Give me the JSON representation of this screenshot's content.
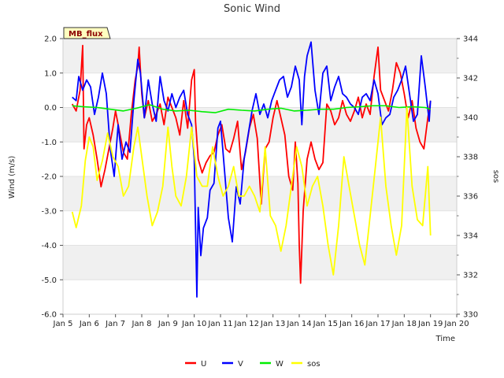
{
  "chart_data": {
    "type": "line",
    "title": "Sonic Wind",
    "badge": "MB_flux",
    "xlabel": "Time",
    "ylabel": "Wind (m/s)",
    "y2label": "sos",
    "x_ticks": [
      "Jan 5",
      "Jan 6",
      "Jan 7",
      "Jan 8",
      "Jan 9",
      "Jan 10",
      "Jan 11",
      "Jan 12",
      "Jan 13",
      "Jan 14",
      "Jan 15",
      "Jan 16",
      "Jan 17",
      "Jan 18",
      "Jan 19",
      "Jan 20"
    ],
    "xlim": [
      5,
      20
    ],
    "ylim": [
      -6.0,
      2.0
    ],
    "y_ticks": [
      "-6.0",
      "-5.0",
      "-4.0",
      "-3.0",
      "-2.0",
      "-1.0",
      "0.0",
      "1.0",
      "2.0"
    ],
    "y2lim": [
      330,
      344
    ],
    "y2_ticks": [
      "330",
      "332",
      "334",
      "336",
      "338",
      "340",
      "342",
      "344"
    ],
    "grid": "horizontal bands",
    "legend_position": "bottom-center",
    "series": [
      {
        "name": "U",
        "color": "#ff0000",
        "axis": "left",
        "x": [
          5.35,
          5.5,
          5.65,
          5.75,
          5.8,
          5.9,
          6.0,
          6.15,
          6.3,
          6.45,
          6.6,
          6.75,
          6.9,
          7.0,
          7.15,
          7.3,
          7.45,
          7.6,
          7.75,
          7.85,
          7.9,
          8.0,
          8.1,
          8.25,
          8.4,
          8.55,
          8.7,
          8.85,
          9.0,
          9.15,
          9.3,
          9.45,
          9.6,
          9.75,
          9.9,
          10.0,
          10.05,
          10.15,
          10.3,
          10.45,
          10.6,
          10.75,
          10.9,
          11.05,
          11.2,
          11.35,
          11.5,
          11.65,
          11.8,
          11.95,
          12.1,
          12.25,
          12.4,
          12.55,
          12.7,
          12.85,
          13.0,
          13.15,
          13.3,
          13.45,
          13.6,
          13.75,
          13.85,
          13.95,
          14.0,
          14.05,
          14.15,
          14.3,
          14.45,
          14.6,
          14.75,
          14.9,
          15.05,
          15.2,
          15.35,
          15.5,
          15.65,
          15.8,
          15.95,
          16.1,
          16.25,
          16.4,
          16.55,
          16.7,
          16.85,
          17.0,
          17.1,
          17.25,
          17.4,
          17.55,
          17.7,
          17.85,
          18.0,
          18.15,
          18.3,
          18.45,
          18.6,
          18.75,
          18.9,
          19.0
        ],
        "y": [
          0.1,
          -0.1,
          0.5,
          1.8,
          -1.2,
          -0.5,
          -0.3,
          -0.8,
          -1.5,
          -2.3,
          -1.8,
          -1.2,
          -0.6,
          -0.1,
          -0.7,
          -1.3,
          -1.5,
          -0.2,
          0.8,
          1.2,
          1.75,
          0.4,
          -0.3,
          0.2,
          -0.4,
          -0.2,
          0.1,
          -0.5,
          0.3,
          0.0,
          -0.3,
          -0.8,
          0.2,
          -0.6,
          0.8,
          1.1,
          -0.4,
          -1.5,
          -1.9,
          -1.6,
          -1.4,
          -1.3,
          -0.8,
          -0.5,
          -1.2,
          -1.3,
          -0.9,
          -0.4,
          -1.8,
          -1.3,
          -0.6,
          -0.2,
          -0.9,
          -2.8,
          -1.2,
          -1.0,
          -0.3,
          0.2,
          -0.3,
          -0.8,
          -2.0,
          -2.4,
          -1.0,
          -2.2,
          -4.0,
          -5.1,
          -3.0,
          -1.5,
          -1.0,
          -1.5,
          -1.8,
          -1.6,
          0.1,
          -0.1,
          -0.5,
          -0.3,
          0.2,
          -0.2,
          -0.4,
          -0.1,
          0.3,
          -0.3,
          0.1,
          -0.2,
          0.9,
          1.75,
          0.5,
          0.2,
          -0.1,
          0.5,
          1.3,
          1.0,
          0.4,
          -0.3,
          0.2,
          -0.6,
          -1.0,
          -1.2,
          -0.3,
          0.2
        ]
      },
      {
        "name": "V",
        "color": "#0000ff",
        "axis": "left",
        "x": [
          5.35,
          5.5,
          5.6,
          5.75,
          5.9,
          6.05,
          6.2,
          6.35,
          6.5,
          6.65,
          6.8,
          6.95,
          7.1,
          7.25,
          7.4,
          7.55,
          7.7,
          7.85,
          7.95,
          8.1,
          8.25,
          8.4,
          8.55,
          8.7,
          8.85,
          9.0,
          9.15,
          9.3,
          9.45,
          9.6,
          9.75,
          9.9,
          10.0,
          10.05,
          10.1,
          10.15,
          10.25,
          10.35,
          10.5,
          10.6,
          10.75,
          10.9,
          11.0,
          11.15,
          11.3,
          11.45,
          11.6,
          11.75,
          11.9,
          12.05,
          12.2,
          12.35,
          12.5,
          12.65,
          12.8,
          12.95,
          13.1,
          13.25,
          13.4,
          13.55,
          13.7,
          13.85,
          14.0,
          14.1,
          14.2,
          14.3,
          14.45,
          14.6,
          14.75,
          14.9,
          15.05,
          15.2,
          15.35,
          15.5,
          15.65,
          15.8,
          15.95,
          16.1,
          16.25,
          16.4,
          16.55,
          16.7,
          16.85,
          17.0,
          17.15,
          17.3,
          17.45,
          17.6,
          17.75,
          17.9,
          18.05,
          18.2,
          18.35,
          18.5,
          18.65,
          18.8,
          18.95,
          19.0
        ],
        "y": [
          0.3,
          0.2,
          0.9,
          0.5,
          0.8,
          0.6,
          -0.2,
          0.3,
          1.0,
          0.4,
          -1.2,
          -2.0,
          -0.5,
          -1.5,
          -1.0,
          -1.3,
          0.2,
          1.4,
          1.0,
          -0.3,
          0.8,
          0.1,
          -0.4,
          0.9,
          0.2,
          -0.1,
          0.4,
          0.0,
          0.3,
          0.5,
          -0.2,
          -0.5,
          -1.5,
          -3.5,
          -5.5,
          -2.9,
          -4.3,
          -3.5,
          -3.2,
          -2.4,
          -2.2,
          -0.6,
          -0.4,
          -1.8,
          -3.2,
          -3.9,
          -2.3,
          -2.8,
          -1.5,
          -0.8,
          -0.1,
          0.4,
          -0.2,
          0.1,
          -0.3,
          0.2,
          0.5,
          0.8,
          0.9,
          0.3,
          0.6,
          1.2,
          0.8,
          -0.5,
          0.9,
          1.5,
          1.9,
          0.5,
          -0.2,
          1.0,
          1.2,
          0.2,
          0.6,
          0.9,
          0.4,
          0.3,
          0.1,
          0.0,
          -0.2,
          0.3,
          0.4,
          0.2,
          0.8,
          0.4,
          -0.5,
          -0.3,
          -0.2,
          0.3,
          0.5,
          0.8,
          1.2,
          0.4,
          -0.4,
          -0.2,
          1.5,
          0.6,
          -0.4,
          0.2
        ]
      },
      {
        "name": "W",
        "color": "#00ee00",
        "axis": "left",
        "x": [
          5.35,
          5.8,
          6.3,
          6.8,
          7.3,
          7.8,
          8.3,
          8.8,
          9.3,
          9.8,
          10.3,
          10.8,
          11.3,
          11.8,
          12.3,
          12.8,
          13.3,
          13.8,
          14.3,
          14.8,
          15.3,
          15.8,
          16.3,
          16.8,
          17.3,
          17.8,
          18.3,
          18.8,
          19.0
        ],
        "y": [
          0.05,
          0.02,
          0.0,
          -0.05,
          -0.1,
          -0.02,
          0.08,
          -0.05,
          -0.1,
          -0.08,
          -0.12,
          -0.15,
          -0.05,
          -0.08,
          -0.1,
          -0.05,
          -0.02,
          -0.1,
          -0.08,
          -0.05,
          -0.05,
          0.0,
          0.02,
          0.05,
          0.05,
          0.0,
          0.02,
          0.0,
          -0.05
        ]
      },
      {
        "name": "sos",
        "color": "#ffff00",
        "axis": "right",
        "x": [
          5.35,
          5.5,
          5.7,
          5.85,
          6.0,
          6.15,
          6.3,
          6.5,
          6.7,
          6.9,
          7.1,
          7.3,
          7.5,
          7.7,
          7.85,
          8.0,
          8.2,
          8.4,
          8.6,
          8.8,
          9.0,
          9.15,
          9.3,
          9.5,
          9.7,
          9.9,
          10.1,
          10.3,
          10.5,
          10.7,
          10.9,
          11.1,
          11.3,
          11.5,
          11.7,
          11.9,
          12.1,
          12.3,
          12.5,
          12.7,
          12.9,
          13.1,
          13.3,
          13.5,
          13.7,
          13.9,
          14.1,
          14.3,
          14.5,
          14.7,
          14.9,
          15.1,
          15.3,
          15.5,
          15.7,
          15.9,
          16.1,
          16.3,
          16.5,
          16.7,
          16.9,
          17.1,
          17.3,
          17.5,
          17.7,
          17.9,
          18.1,
          18.3,
          18.5,
          18.7,
          18.9,
          19.0
        ],
        "y": [
          335.2,
          334.4,
          335.5,
          337.8,
          339.0,
          338.5,
          336.8,
          337.8,
          339.2,
          338.0,
          337.5,
          336.0,
          336.5,
          338.5,
          339.5,
          338.0,
          336.0,
          334.5,
          335.2,
          336.5,
          339.5,
          337.5,
          336.0,
          335.5,
          337.0,
          339.5,
          337.0,
          336.5,
          336.5,
          338.5,
          337.0,
          336.0,
          336.5,
          337.5,
          336.0,
          336.0,
          336.5,
          336.0,
          335.2,
          338.5,
          335.0,
          334.5,
          333.2,
          334.5,
          336.5,
          338.5,
          337.5,
          335.5,
          336.5,
          337.0,
          335.5,
          333.5,
          332.0,
          334.5,
          338.0,
          336.5,
          335.0,
          333.5,
          332.5,
          335.0,
          337.5,
          340.0,
          336.5,
          334.5,
          333.0,
          334.5,
          340.5,
          336.5,
          334.8,
          334.5,
          337.5,
          334.0
        ]
      }
    ]
  }
}
